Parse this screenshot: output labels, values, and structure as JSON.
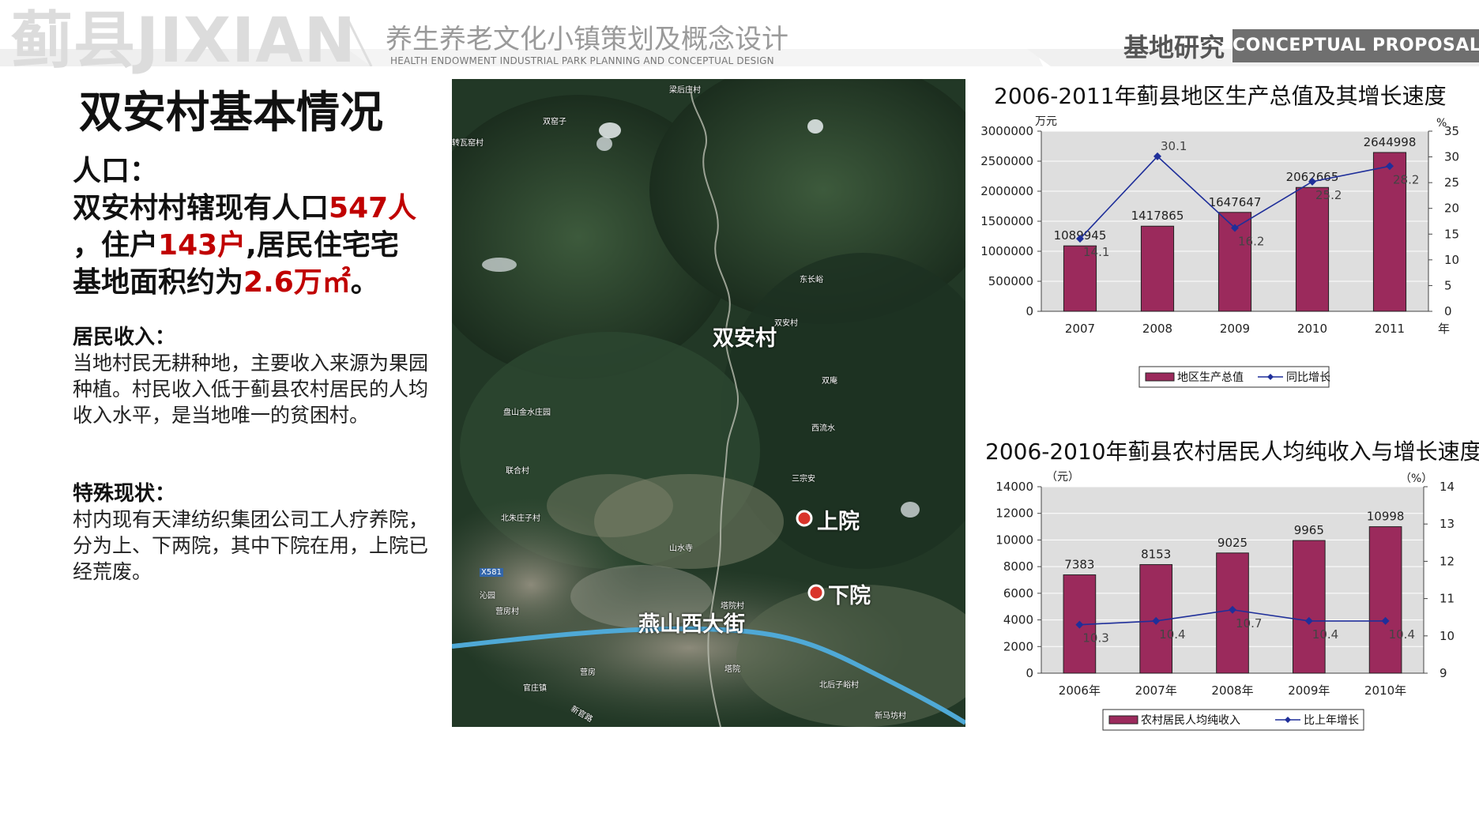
{
  "header": {
    "brand": "蓟县JIXIAN",
    "title": "养生养老文化小镇策划及概念设计",
    "subtitle": "HEALTH ENDOWMENT INDUSTRIAL PARK PLANNING AND CONCEPTUAL DESIGN",
    "section": "基地研究",
    "tag": "CONCEPTUAL  PROPOSAL"
  },
  "left": {
    "title": "双安村基本情况",
    "population_heading": "人口：",
    "pop_l1_a": "双安村村辖现有人口",
    "pop_l1_b": "547人",
    "pop_l2_a": "，住户",
    "pop_l2_b": "143户",
    "pop_l2_c": ",居民住宅宅",
    "pop_l3_a": "基地面积约为",
    "pop_l3_b": "2.6万㎡",
    "pop_l3_c": "。",
    "income_heading": "居民收入：",
    "income_text": "当地村民无耕种地，主要收入来源为果园种植。村民收入低于蓟县农村居民的人均收入水平，是当地唯一的贫困村。",
    "special_heading": "特殊现状：",
    "special_text": "村内现有天津纺织集团公司工人疗养院，分为上、下两院，其中下院在用，上院已经荒废。"
  },
  "map": {
    "labels": {
      "village": "双安村",
      "upper": "上院",
      "lower": "下院",
      "street": "燕山西大街",
      "p1": "梁后庄村",
      "p2": "双窑子",
      "p3": "转瓦窑村",
      "p4": "东长峪",
      "p5": "双安村",
      "p6": "双庵",
      "p7": "西流水",
      "p8": "三宗安",
      "p9": "盘山金水庄园",
      "p10": "联合村",
      "p11": "北朱庄子村",
      "p12": "山水寺",
      "p13": "X581",
      "p14": "沁园",
      "p15": "营房村",
      "p16": "塔院村",
      "p17": "营房",
      "p18": "塔院",
      "p19": "官庄镇",
      "p20": "北后子峪村",
      "p21": "新马坊村",
      "p22": "新官路"
    },
    "colors": {
      "marker": "#d9342b",
      "road": "#4fa9d6"
    }
  },
  "chart_data": [
    {
      "type": "bar",
      "title": "2006-2011年蓟县地区生产总值及其增长速度",
      "ylabel": "万元",
      "y2label": "%",
      "xunit": "年",
      "categories": [
        "2007",
        "2008",
        "2009",
        "2010",
        "2011"
      ],
      "ylim": [
        0,
        3000000
      ],
      "yticks": [
        "3000000",
        "2500000",
        "2000000",
        "1500000",
        "1000000",
        "500000",
        "0"
      ],
      "y2lim": [
        0,
        35
      ],
      "y2ticks": [
        "35",
        "30",
        "25",
        "20",
        "15",
        "10",
        "5",
        "0"
      ],
      "series": [
        {
          "name": "地区生产总值",
          "kind": "bar",
          "values": [
            1089945,
            1417865,
            1647647,
            2062665,
            2644998
          ],
          "labels": [
            "1089945",
            "1417865",
            "1647647",
            "2062665",
            "2644998"
          ]
        },
        {
          "name": "同比增长",
          "kind": "line",
          "axis": "right",
          "values": [
            14.1,
            30.1,
            16.2,
            25.2,
            28.2
          ],
          "labels": [
            "14.1",
            "30.1",
            "16.2",
            "25.2",
            "28.2"
          ]
        }
      ],
      "legend": "bottom",
      "colors": {
        "bar": "#9b2a5c",
        "line": "#1f2f9a"
      }
    },
    {
      "type": "bar",
      "title": "2006-2010年蓟县农村居民人均纯收入与增长速度",
      "ylabel": "（元）",
      "y2label": "（%）",
      "categories": [
        "2006年",
        "2007年",
        "2008年",
        "2009年",
        "2010年"
      ],
      "ylim": [
        0,
        14000
      ],
      "yticks": [
        "14000",
        "12000",
        "10000",
        "8000",
        "6000",
        "4000",
        "2000",
        "0"
      ],
      "y2lim": [
        9,
        14
      ],
      "y2ticks": [
        "14",
        "13",
        "12",
        "11",
        "10",
        "9"
      ],
      "series": [
        {
          "name": "农村居民人均纯收入",
          "kind": "bar",
          "values": [
            7383,
            8153,
            9025,
            9965,
            10998
          ],
          "labels": [
            "7383",
            "8153",
            "9025",
            "9965",
            "10998"
          ]
        },
        {
          "name": "比上年增长",
          "kind": "line",
          "axis": "right",
          "values": [
            10.3,
            10.4,
            10.7,
            10.4,
            10.4
          ],
          "labels": [
            "10.3",
            "10.4",
            "10.7",
            "10.4",
            "10.4"
          ]
        }
      ],
      "legend": "bottom",
      "colors": {
        "bar": "#9b2a5c",
        "line": "#1f2f9a"
      }
    }
  ]
}
